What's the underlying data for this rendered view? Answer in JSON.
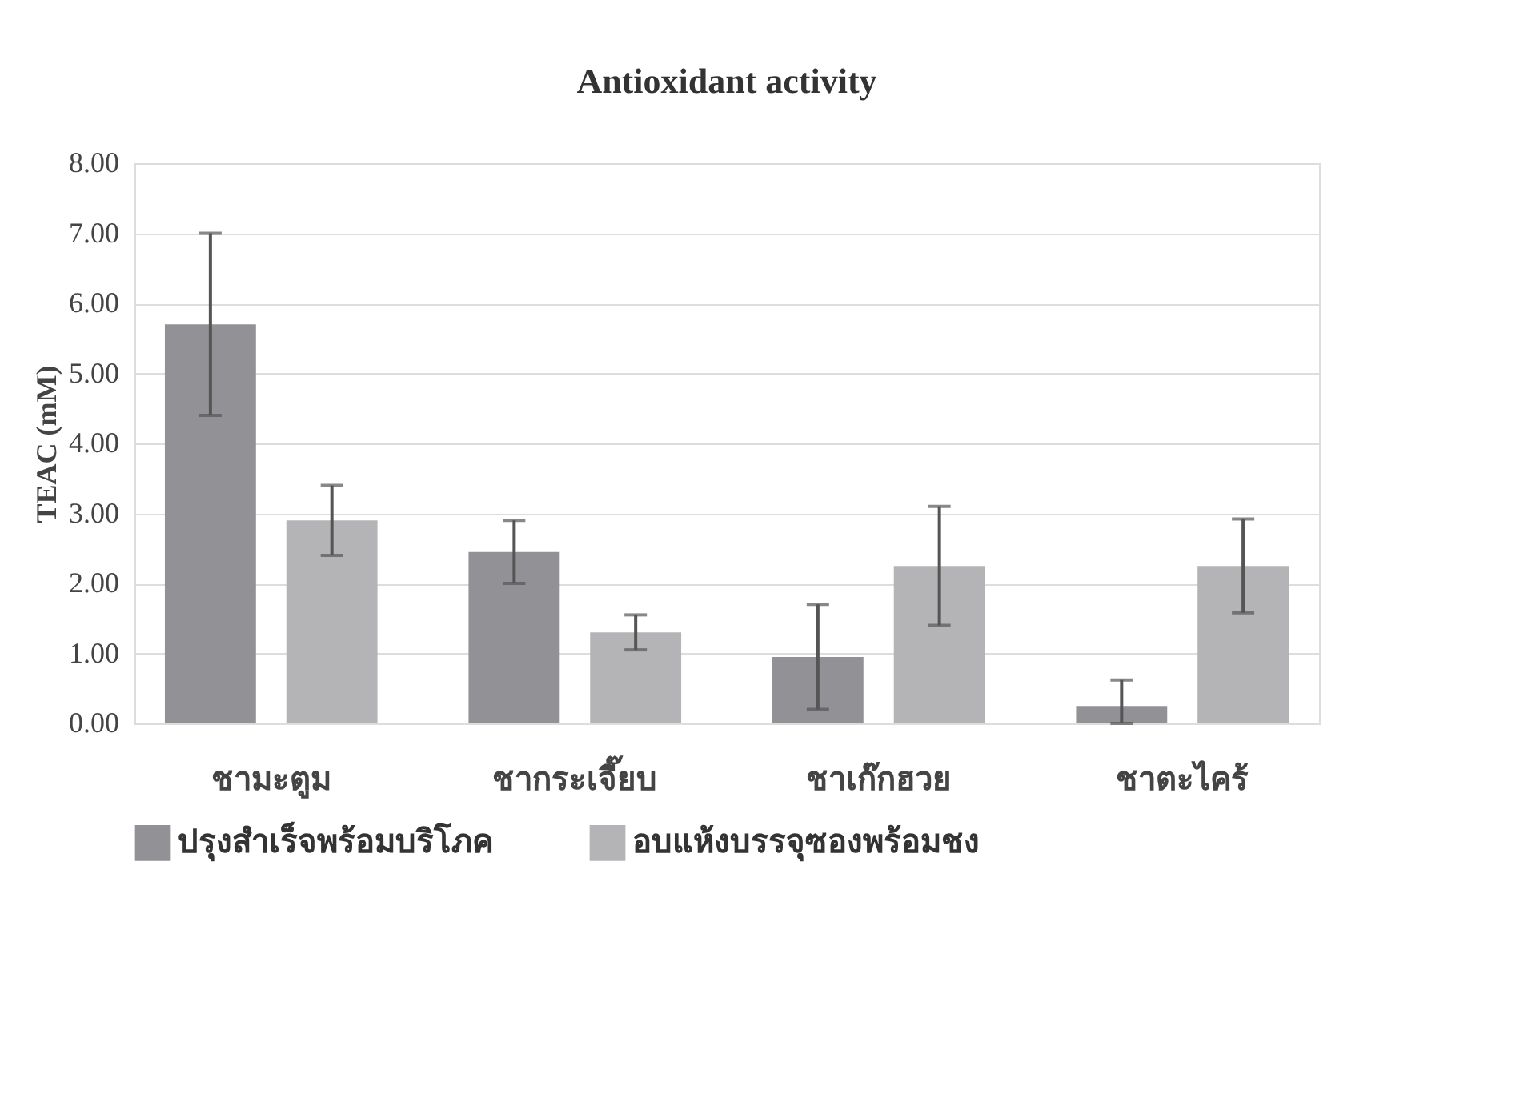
{
  "chart_data": {
    "type": "bar",
    "title": "Antioxidant activity",
    "ylabel": "TEAC (mM)",
    "categories": [
      "ชามะตูม",
      "ชากระเจี๊ยบ",
      "ชาเก๊กฮวย",
      "ชาตะไคร้"
    ],
    "series": [
      {
        "name": "ปรุงสำเร็จพร้อมบริโภค",
        "color": "#929296",
        "values": [
          5.7,
          2.45,
          0.95,
          0.25
        ],
        "errors": [
          1.3,
          0.45,
          0.75,
          [
            0,
            0.62
          ]
        ]
      },
      {
        "name": "อบแห้งบรรจุซองพร้อมชง",
        "color": "#b4b4b6",
        "values": [
          2.9,
          1.3,
          2.25,
          2.25
        ],
        "errors": [
          0.5,
          0.25,
          0.85,
          0.67
        ]
      }
    ],
    "ylim": [
      0,
      8
    ],
    "yticks": [
      {
        "value": 0,
        "label": "0.00"
      },
      {
        "value": 1,
        "label": "1.00"
      },
      {
        "value": 2,
        "label": "2.00"
      },
      {
        "value": 3,
        "label": "3.00"
      },
      {
        "value": 4,
        "label": "4.00"
      },
      {
        "value": 5,
        "label": "5.00"
      },
      {
        "value": 6,
        "label": "6.00"
      },
      {
        "value": 7,
        "label": "7.00"
      },
      {
        "value": 8,
        "label": "8.00"
      }
    ],
    "grid": "y",
    "legend": "bottom"
  }
}
